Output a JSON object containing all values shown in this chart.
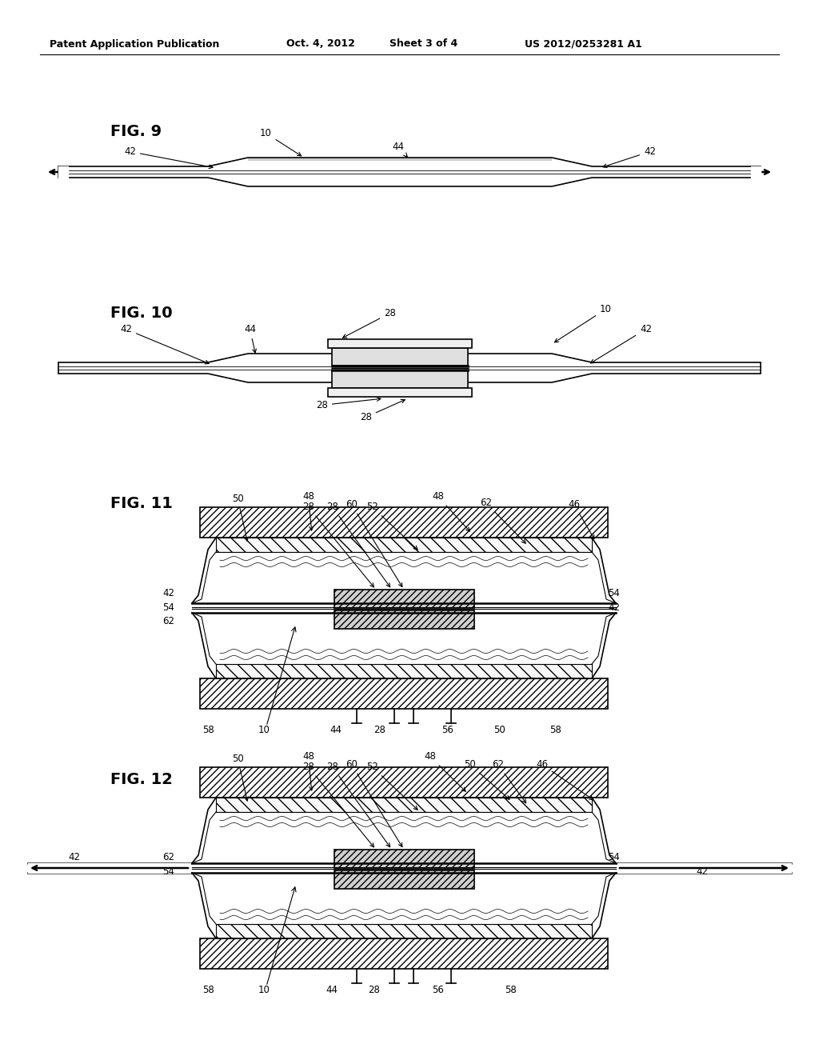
{
  "page_width": 10.24,
  "page_height": 13.2,
  "dpi": 100,
  "bg": "#ffffff",
  "lc": "#000000",
  "header_left": "Patent Application Publication",
  "header_mid1": "Oct. 4, 2012",
  "header_mid2": "Sheet 3 of 4",
  "header_right": "US 2012/0253281 A1",
  "fig9_label": "FIG. 9",
  "fig10_label": "FIG. 10",
  "fig11_label": "FIG. 11",
  "fig12_label": "FIG. 12"
}
